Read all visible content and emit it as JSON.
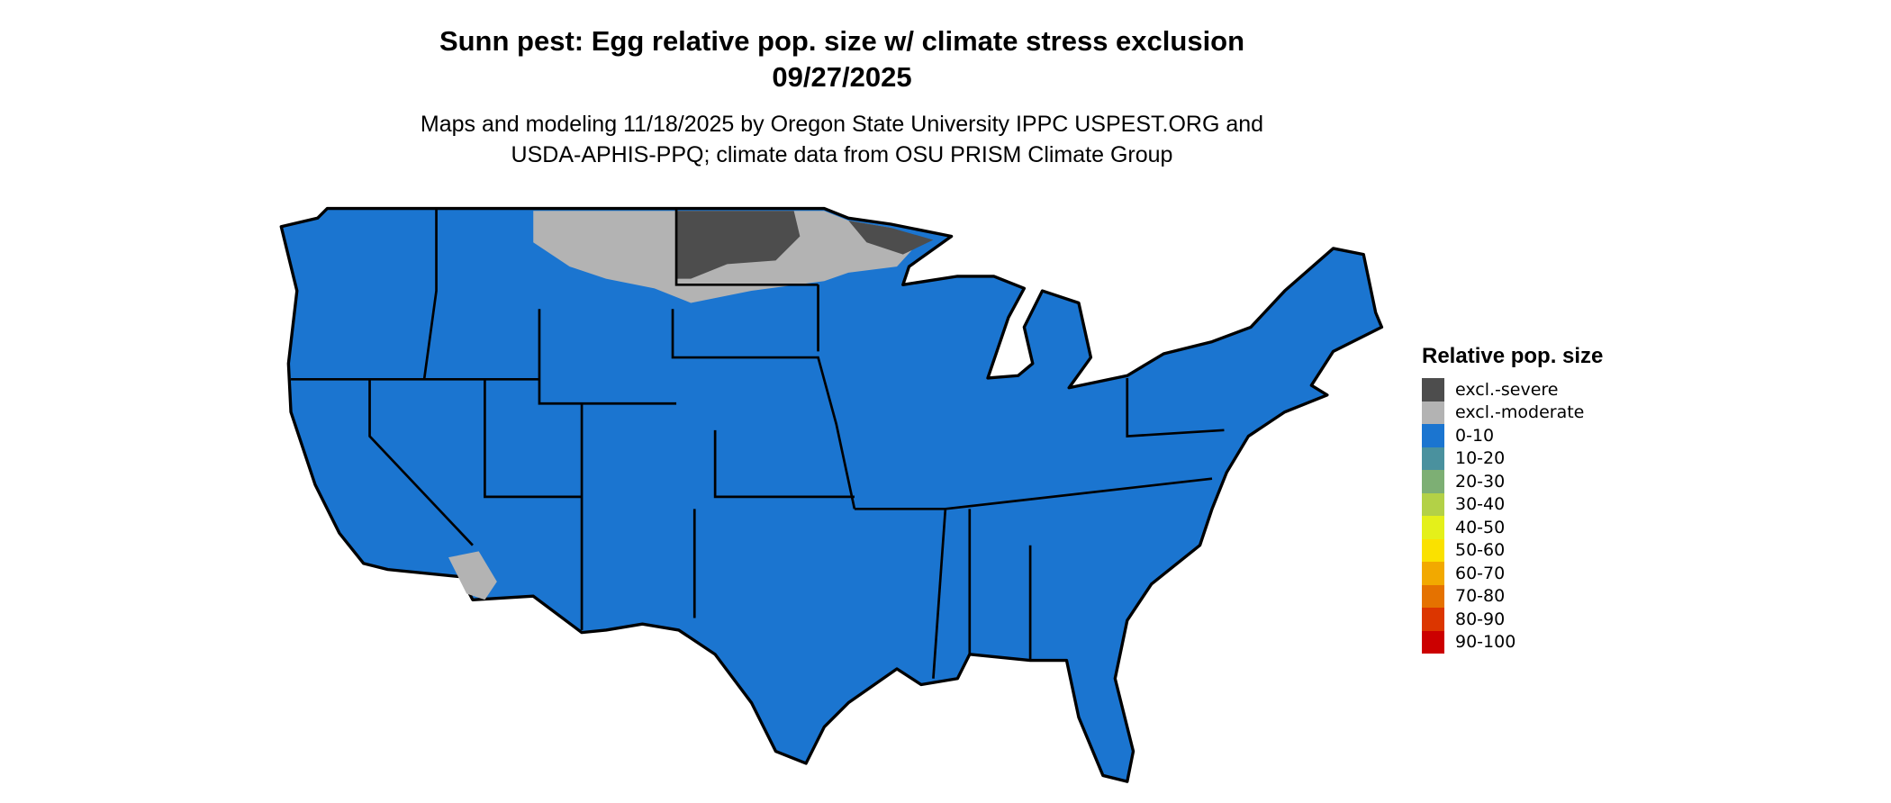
{
  "title": "Sunn pest: Egg relative pop. size w/ climate stress exclusion",
  "date": "09/27/2025",
  "subtitle_line1": "Maps and modeling 11/18/2025 by Oregon State University IPPC USPEST.ORG and",
  "subtitle_line2": "USDA-APHIS-PPQ; climate data from OSU PRISM Climate Group",
  "legend": {
    "title": "Relative pop. size",
    "items": [
      {
        "label": "excl.-severe",
        "color": "#4d4d4d"
      },
      {
        "label": "excl.-moderate",
        "color": "#b3b3b3"
      },
      {
        "label": "0-10",
        "color": "#1b75d0"
      },
      {
        "label": "10-20",
        "color": "#4a919e"
      },
      {
        "label": "20-30",
        "color": "#7daf74"
      },
      {
        "label": "30-40",
        "color": "#b3d147"
      },
      {
        "label": "40-50",
        "color": "#e4f01a"
      },
      {
        "label": "50-60",
        "color": "#fae100"
      },
      {
        "label": "60-70",
        "color": "#f2a900"
      },
      {
        "label": "70-80",
        "color": "#e57200"
      },
      {
        "label": "80-90",
        "color": "#dc3600"
      },
      {
        "label": "90-100",
        "color": "#cc0000"
      }
    ]
  },
  "map": {
    "region": "Contiguous United States",
    "dominant_class": "0-10",
    "excluded_severe_region": "North Dakota, northeast Minnesota",
    "excluded_moderate_region": "northern Montana, northern Minnesota, southwest Arizona"
  }
}
